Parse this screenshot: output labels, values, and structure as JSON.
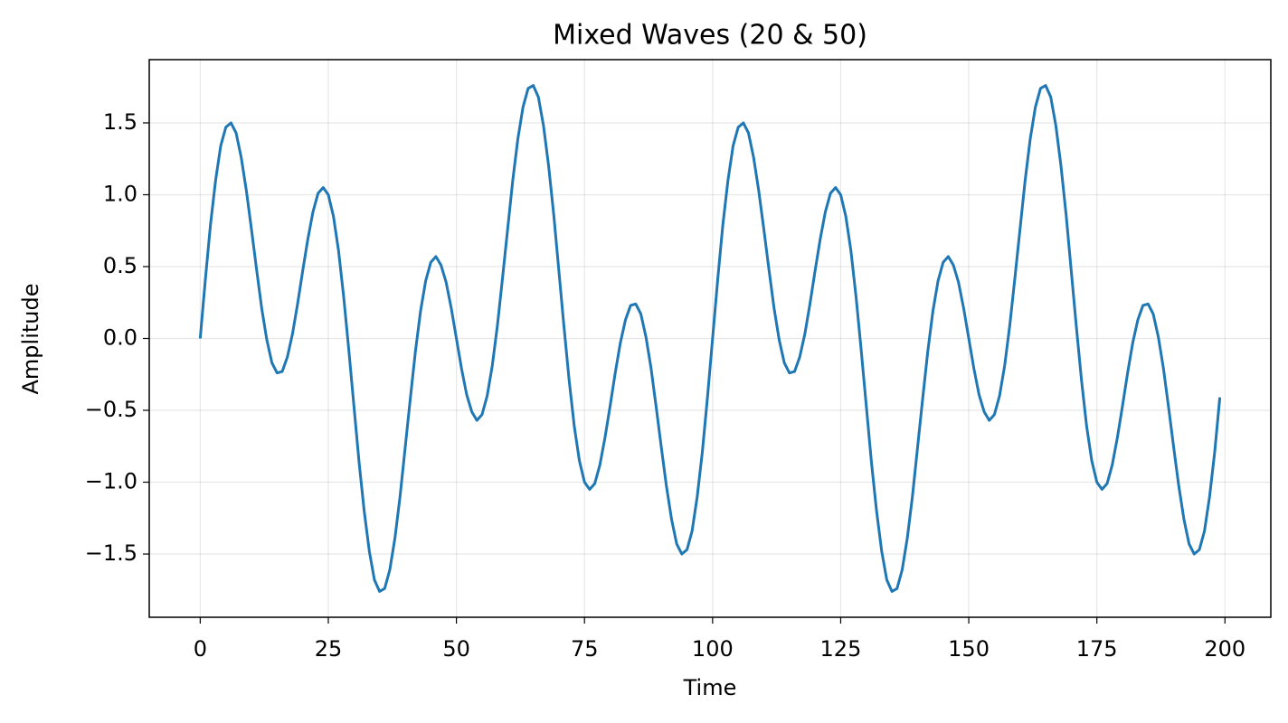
{
  "chart_data": {
    "type": "line",
    "title": "Mixed Waves (20 & 50)",
    "xlabel": "Time",
    "ylabel": "Amplitude",
    "color": "#1f77b4",
    "grid": true,
    "x": [
      0,
      1,
      2,
      3,
      4,
      5,
      6,
      7,
      8,
      9,
      10,
      11,
      12,
      13,
      14,
      15,
      16,
      17,
      18,
      19,
      20,
      21,
      22,
      23,
      24,
      25,
      26,
      27,
      28,
      29,
      30,
      31,
      32,
      33,
      34,
      35,
      36,
      37,
      38,
      39,
      40,
      41,
      42,
      43,
      44,
      45,
      46,
      47,
      48,
      49,
      50,
      51,
      52,
      53,
      54,
      55,
      56,
      57,
      58,
      59,
      60,
      61,
      62,
      63,
      64,
      65,
      66,
      67,
      68,
      69,
      70,
      71,
      72,
      73,
      74,
      75,
      76,
      77,
      78,
      79,
      80,
      81,
      82,
      83,
      84,
      85,
      86,
      87,
      88,
      89,
      90,
      91,
      92,
      93,
      94,
      95,
      96,
      97,
      98,
      99,
      100,
      101,
      102,
      103,
      104,
      105,
      106,
      107,
      108,
      109,
      110,
      111,
      112,
      113,
      114,
      115,
      116,
      117,
      118,
      119,
      120,
      121,
      122,
      123,
      124,
      125,
      126,
      127,
      128,
      129,
      130,
      131,
      132,
      133,
      134,
      135,
      136,
      137,
      138,
      139,
      140,
      141,
      142,
      143,
      144,
      145,
      146,
      147,
      148,
      149,
      150,
      151,
      152,
      153,
      154,
      155,
      156,
      157,
      158,
      159,
      160,
      161,
      162,
      163,
      164,
      165,
      166,
      167,
      168,
      169,
      170,
      171,
      172,
      173,
      174,
      175,
      176,
      177,
      178,
      179,
      180,
      181,
      182,
      183,
      184,
      185,
      186,
      187,
      188,
      189,
      190,
      191,
      192,
      193,
      194,
      195,
      196,
      197,
      198,
      199
    ],
    "values": [
      0,
      0.41,
      0.79,
      1.1,
      1.34,
      1.47,
      1.5,
      1.43,
      1.26,
      1.03,
      0.76,
      0.48,
      0.21,
      -0.01,
      -0.17,
      -0.24,
      -0.23,
      -0.13,
      0.03,
      0.24,
      0.47,
      0.69,
      0.88,
      1.01,
      1.05,
      1.0,
      0.85,
      0.61,
      0.29,
      -0.08,
      -0.47,
      -0.86,
      -1.2,
      -1.48,
      -1.68,
      -1.76,
      -1.74,
      -1.61,
      -1.39,
      -1.1,
      -0.76,
      -0.42,
      -0.09,
      0.19,
      0.4,
      0.53,
      0.57,
      0.51,
      0.39,
      0.21,
      0,
      -0.21,
      -0.39,
      -0.51,
      -0.57,
      -0.53,
      -0.4,
      -0.19,
      0.09,
      0.42,
      0.76,
      1.1,
      1.39,
      1.61,
      1.74,
      1.76,
      1.68,
      1.48,
      1.2,
      0.86,
      0.47,
      0.08,
      -0.29,
      -0.61,
      -0.85,
      -1.0,
      -1.05,
      -1.01,
      -0.88,
      -0.69,
      -0.47,
      -0.24,
      -0.03,
      0.13,
      0.23,
      0.24,
      0.17,
      0.01,
      -0.21,
      -0.48,
      -0.76,
      -1.03,
      -1.26,
      -1.43,
      -1.5,
      -1.47,
      -1.34,
      -1.1,
      -0.79,
      -0.41,
      0,
      0.41,
      0.79,
      1.1,
      1.34,
      1.47,
      1.5,
      1.43,
      1.26,
      1.03,
      0.76,
      0.48,
      0.21,
      -0.01,
      -0.17,
      -0.24,
      -0.23,
      -0.13,
      0.03,
      0.24,
      0.47,
      0.69,
      0.88,
      1.01,
      1.05,
      1.0,
      0.85,
      0.61,
      0.29,
      -0.08,
      -0.47,
      -0.86,
      -1.2,
      -1.48,
      -1.68,
      -1.76,
      -1.74,
      -1.61,
      -1.39,
      -1.1,
      -0.76,
      -0.42,
      -0.09,
      0.19,
      0.4,
      0.53,
      0.57,
      0.51,
      0.39,
      0.21,
      0,
      -0.21,
      -0.39,
      -0.51,
      -0.57,
      -0.53,
      -0.4,
      -0.19,
      0.09,
      0.42,
      0.76,
      1.1,
      1.39,
      1.61,
      1.74,
      1.76,
      1.68,
      1.48,
      1.2,
      0.86,
      0.47,
      0.08,
      -0.29,
      -0.61,
      -0.85,
      -1.0,
      -1.05,
      -1.01,
      -0.88,
      -0.69,
      -0.47,
      -0.24,
      -0.03,
      0.13,
      0.23,
      0.24,
      0.17,
      0.01,
      -0.21,
      -0.48,
      -0.76,
      -1.03,
      -1.26,
      -1.43,
      -1.5,
      -1.47,
      -1.34,
      -1.1,
      -0.79,
      -0.41
    ],
    "xlim": [
      -9.95,
      208.95
    ],
    "xticks": [
      0,
      25,
      50,
      75,
      100,
      125,
      150,
      175,
      200
    ],
    "ylim": [
      -1.94,
      1.94
    ],
    "yticks": [
      {
        "value": -1.5,
        "label": "−1.5"
      },
      {
        "value": -1.0,
        "label": "−1.0"
      },
      {
        "value": -0.5,
        "label": "−0.5"
      },
      {
        "value": 0,
        "label": "0.0"
      },
      0.5,
      {
        "value": 1.0,
        "label": "1.0"
      },
      1.5
    ]
  }
}
